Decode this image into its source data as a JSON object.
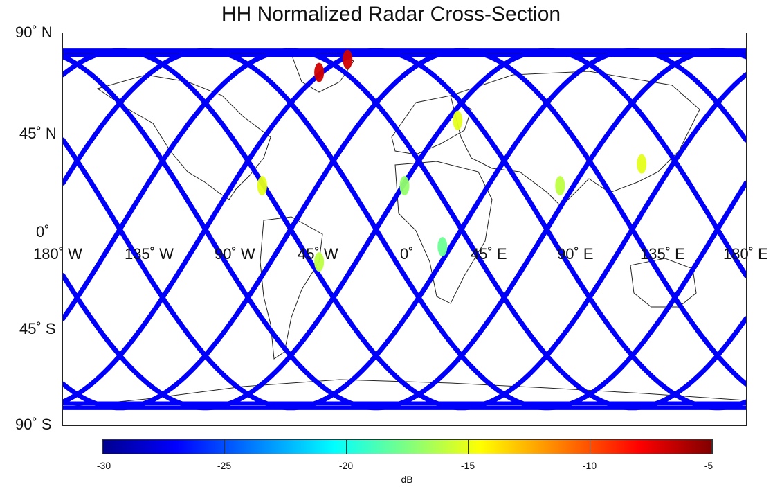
{
  "title": "HH Normalized Radar Cross-Section",
  "lat_labels": [
    "90˚ N",
    "45˚ N",
    "0˚",
    "45˚ S",
    "90˚ S"
  ],
  "lon_labels": [
    "180˚ W",
    "135˚ W",
    "90˚ W",
    "45˚ W",
    "0˚",
    "45˚ E",
    "90˚ E",
    "135˚ E",
    "180˚ E"
  ],
  "colorbar": {
    "unit": "dB",
    "ticks": [
      "-30",
      "-25",
      "-20",
      "-15",
      "-10",
      "-5"
    ],
    "range": [
      -30,
      -5
    ],
    "colormap": "jet",
    "colors": [
      "#00008f",
      "#0000ff",
      "#00ffff",
      "#ffff00",
      "#ff0000",
      "#800000"
    ]
  },
  "chart_data": {
    "type": "map",
    "title": "HH Normalized Radar Cross-Section",
    "projection": "plate carree",
    "xlim": [
      -180,
      180
    ],
    "ylim": [
      -90,
      90
    ],
    "xticks": [
      "180˚ W",
      "135˚ W",
      "90˚ W",
      "45˚ W",
      "0˚",
      "45˚ E",
      "90˚ E",
      "135˚ E",
      "180˚ E"
    ],
    "yticks": [
      "90˚ N",
      "45˚ N",
      "0˚",
      "45˚ S",
      "90˚ S"
    ],
    "colorbar_label": "dB",
    "colorbar_range": [
      -30,
      -5
    ],
    "tracks": {
      "description_count": 8,
      "max_latitude": 82,
      "ascending_equator_crossings_deg": [
        -150,
        -105,
        -60,
        -15,
        30,
        75,
        120,
        165
      ],
      "typical_value_db": -27,
      "highlights": [
        {
          "lon": -75,
          "lat": 20,
          "value_db": -15
        },
        {
          "lon": -45,
          "lat": -15,
          "value_db": -16
        },
        {
          "lon": 0,
          "lat": 20,
          "value_db": -17
        },
        {
          "lon": 28,
          "lat": 50,
          "value_db": -15
        },
        {
          "lon": 82,
          "lat": 20,
          "value_db": -16
        },
        {
          "lon": 125,
          "lat": 30,
          "value_db": -15
        },
        {
          "lon": -30,
          "lat": 78,
          "value_db": -7
        },
        {
          "lon": -45,
          "lat": 72,
          "value_db": -7
        },
        {
          "lon": 20,
          "lat": -8,
          "value_db": -18
        }
      ]
    },
    "coastlines": true,
    "grid": false
  }
}
